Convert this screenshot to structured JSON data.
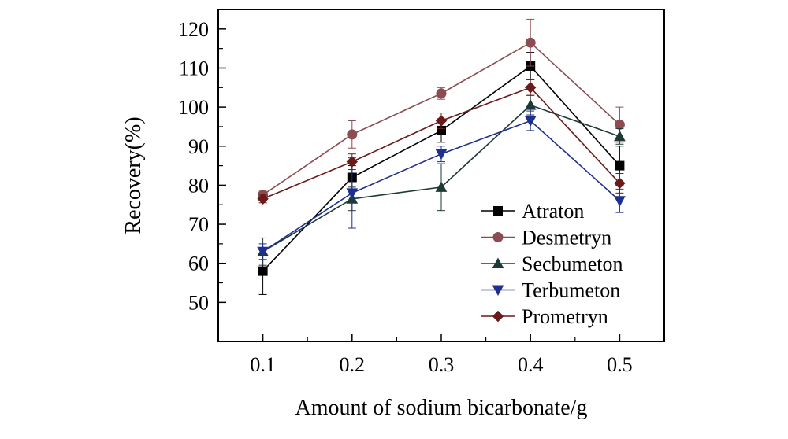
{
  "chart_data": {
    "type": "line",
    "xlabel": "Amount of sodium bicarbonate/g",
    "ylabel": "Recovery(%)",
    "x": [
      0.1,
      0.2,
      0.3,
      0.4,
      0.5
    ],
    "x_tick_labels": [
      "0.1",
      "0.2",
      "0.3",
      "0.4",
      "0.5"
    ],
    "y_ticks": [
      50,
      60,
      70,
      80,
      90,
      100,
      110,
      120
    ],
    "y_tick_labels": [
      "50",
      "60",
      "70",
      "80",
      "90",
      "100",
      "110",
      "120"
    ],
    "xlim": [
      0.05,
      0.55
    ],
    "ylim": [
      40,
      125
    ],
    "grid": false,
    "legend_position": "lower-right",
    "series": [
      {
        "name": "Atraton",
        "color": "#000000",
        "marker": "square",
        "values": [
          58,
          82,
          94,
          110.5,
          85
        ],
        "errors": [
          6,
          3,
          3,
          3.5,
          5
        ]
      },
      {
        "name": "Desmetryn",
        "color": "#8B4D52",
        "marker": "circle",
        "values": [
          77.5,
          93,
          103.5,
          116.5,
          95.5
        ],
        "errors": [
          1,
          3.5,
          1.5,
          6,
          4.5
        ]
      },
      {
        "name": "Secbumeton",
        "color": "#1E3A36",
        "marker": "triangle-up",
        "values": [
          63,
          76.5,
          79.5,
          100.5,
          92.5
        ],
        "errors": [
          3.5,
          3,
          6,
          2.5,
          2
        ]
      },
      {
        "name": "Terbumeton",
        "color": "#1F2F8F",
        "marker": "triangle-down",
        "values": [
          63,
          78,
          88,
          96.5,
          76
        ],
        "errors": [
          2,
          9,
          2,
          2.5,
          3
        ]
      },
      {
        "name": "Prometryn",
        "color": "#6B1A1A",
        "marker": "diamond",
        "values": [
          76.5,
          86,
          96.5,
          105,
          80.5
        ],
        "errors": [
          1,
          2,
          2,
          2,
          2.5
        ]
      }
    ]
  }
}
